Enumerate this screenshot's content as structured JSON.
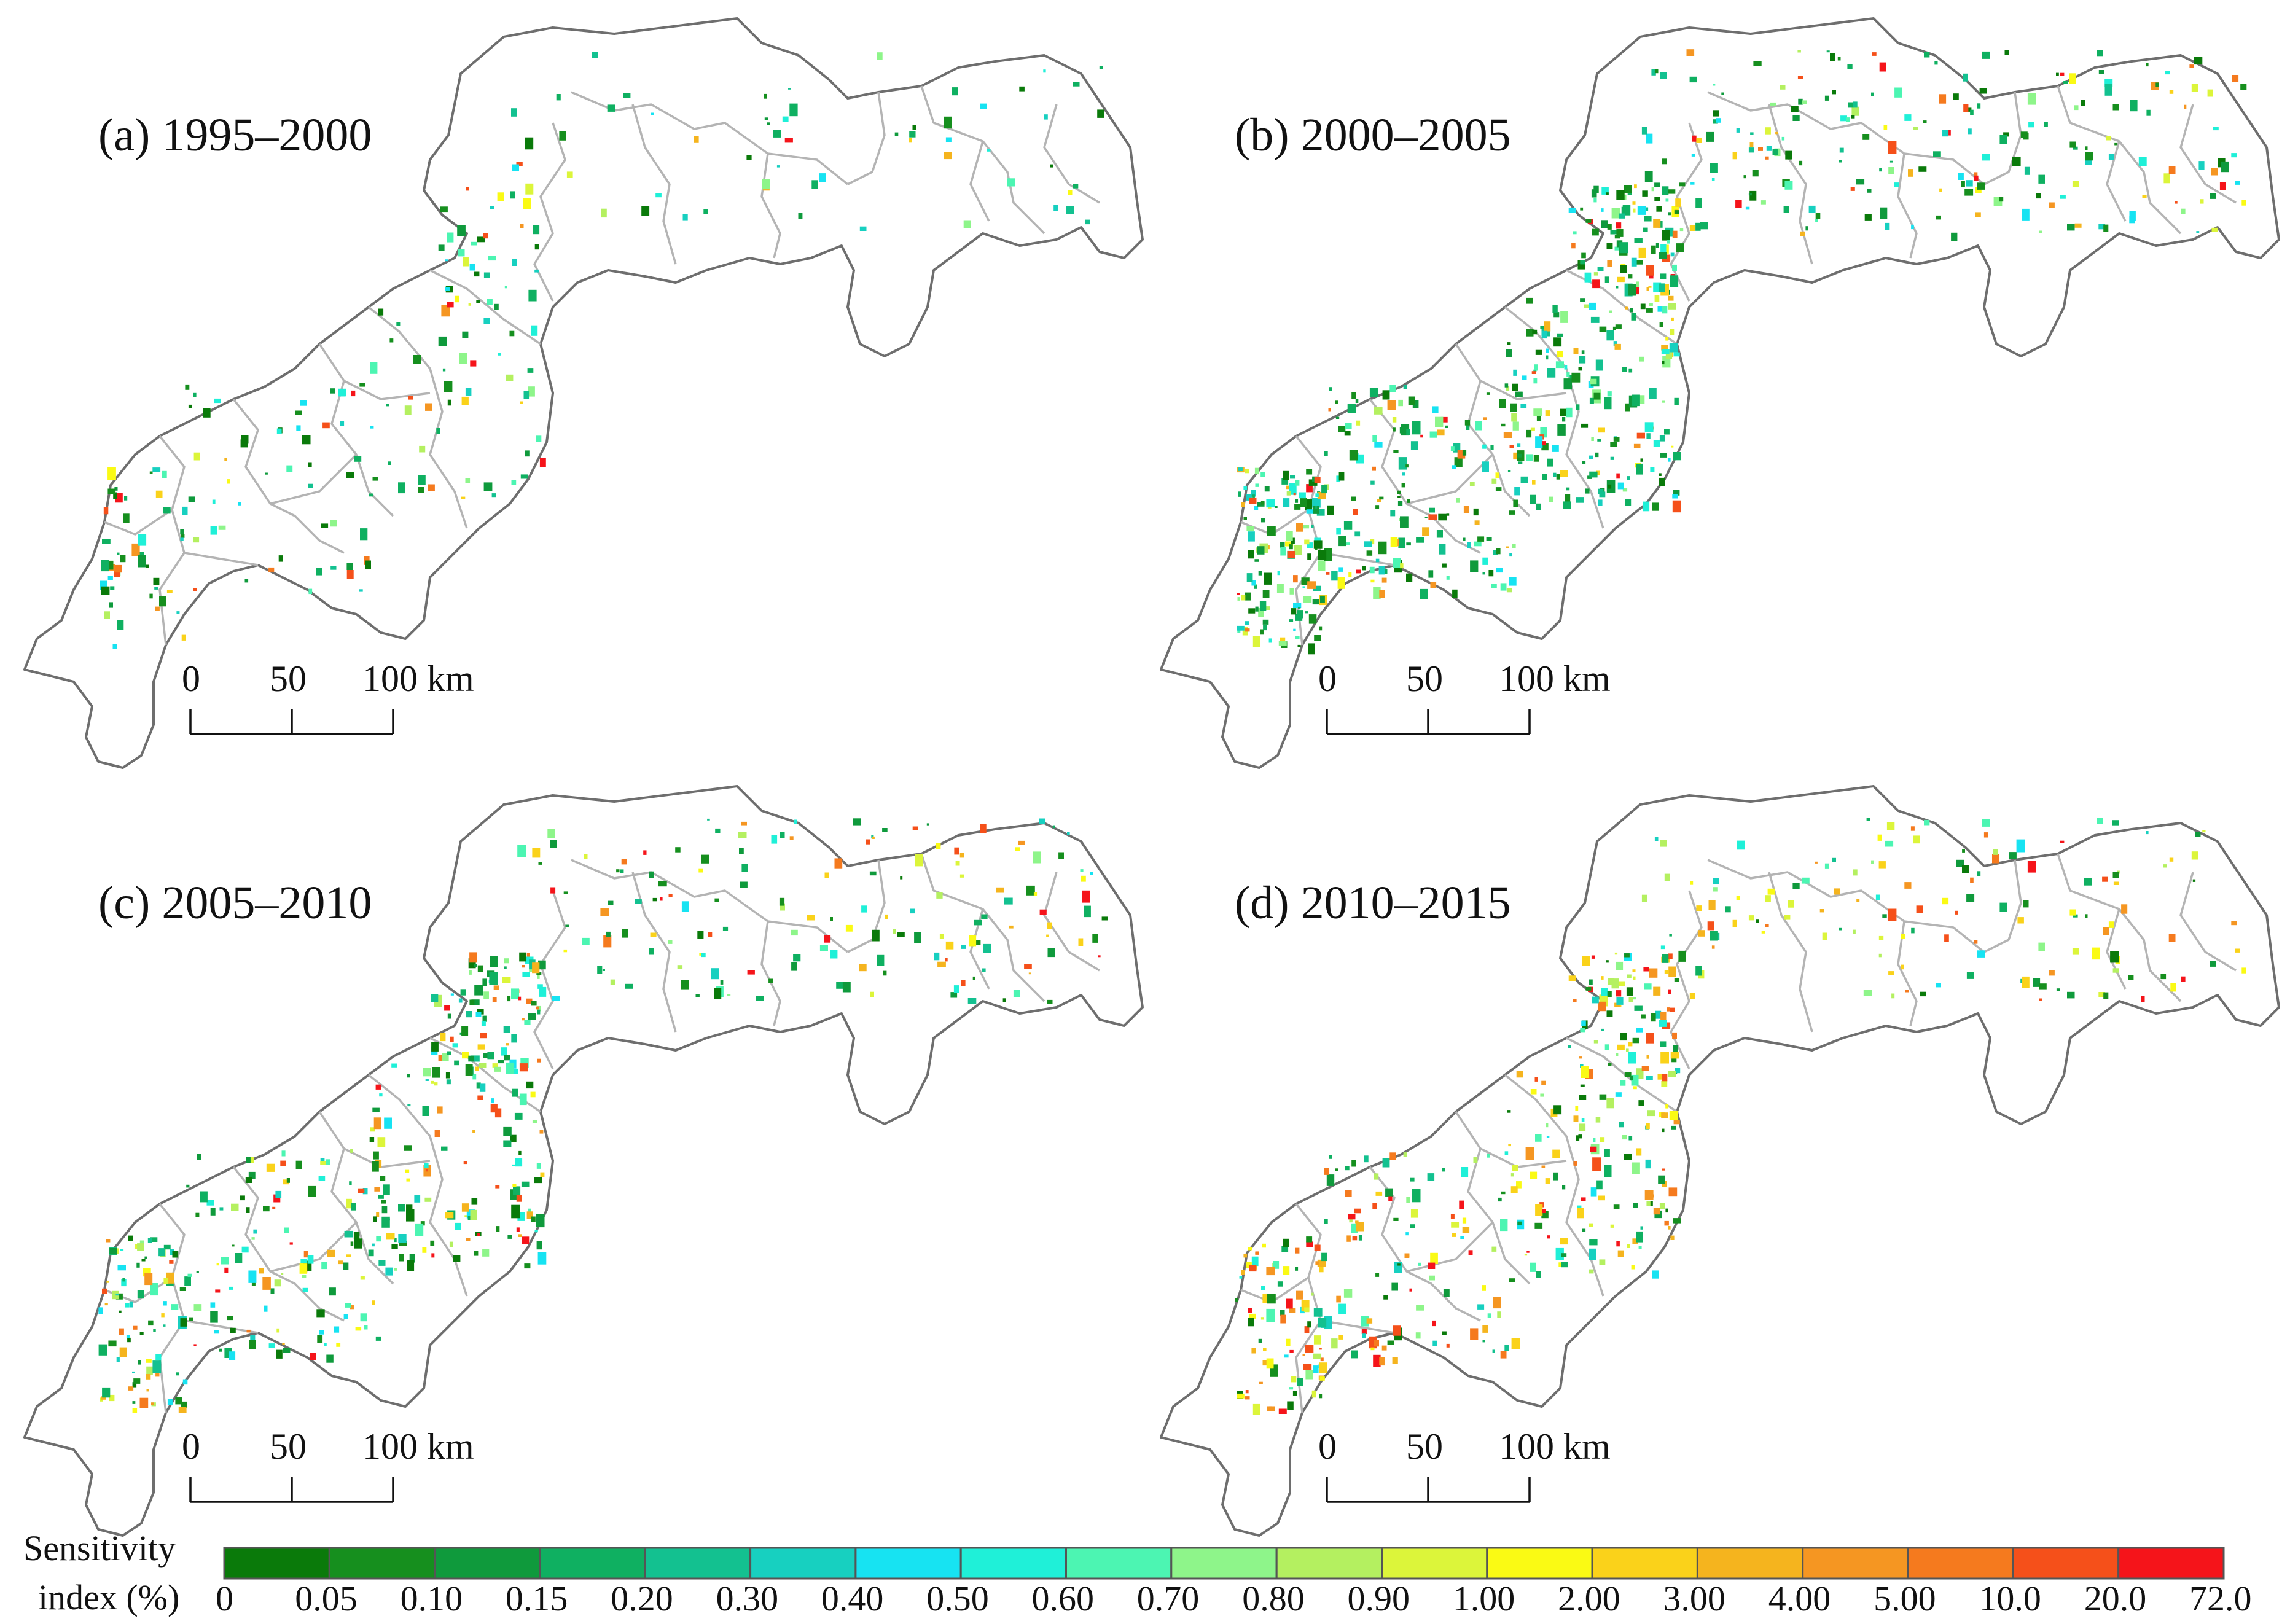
{
  "panels": [
    {
      "label": "(a) 1995–2000"
    },
    {
      "label": "(b) 2000–2005"
    },
    {
      "label": "(c) 2005–2010"
    },
    {
      "label": "(d) 2010–2015"
    }
  ],
  "scale_bar": {
    "ticks": [
      "0",
      "50",
      "100 km"
    ]
  },
  "legend": {
    "title_line1": "Sensitivity",
    "title_line2": "index (%)",
    "breaks": [
      "0",
      "0.05",
      "0.10",
      "0.15",
      "0.20",
      "0.30",
      "0.40",
      "0.50",
      "0.60",
      "0.70",
      "0.80",
      "0.90",
      "1.00",
      "2.00",
      "3.00",
      "4.00",
      "5.00",
      "10.0",
      "20.0",
      "72.0"
    ],
    "colors": [
      "#0a7a0a",
      "#168f1e",
      "#0f9a3c",
      "#0fb061",
      "#13c190",
      "#17d0c0",
      "#17e3f2",
      "#1ff0d8",
      "#4cf5b2",
      "#8ef58a",
      "#b4f060",
      "#dcf53a",
      "#fafa14",
      "#fad21a",
      "#f5b41e",
      "#f59622",
      "#f57a1e",
      "#f5501a",
      "#f5141a"
    ]
  },
  "density": [
    {
      "green": 0.3,
      "cyan": 0.2,
      "warm": 0.15
    },
    {
      "green": 1.0,
      "cyan": 0.8,
      "warm": 0.45
    },
    {
      "green": 0.65,
      "cyan": 0.4,
      "warm": 0.55
    },
    {
      "green": 0.35,
      "cyan": 0.3,
      "warm": 0.85
    }
  ]
}
